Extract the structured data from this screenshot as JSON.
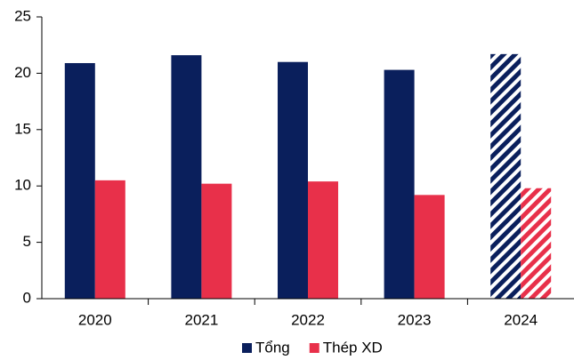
{
  "chart_data": {
    "type": "bar",
    "categories": [
      "2020",
      "2021",
      "2022",
      "2023",
      "2024"
    ],
    "series": [
      {
        "name": "Tổng",
        "color": "#0a1f5c",
        "values": [
          20.9,
          21.6,
          21.0,
          20.3,
          21.7
        ]
      },
      {
        "name": "Thép XD",
        "color": "#e8304a",
        "values": [
          10.5,
          10.2,
          10.4,
          9.2,
          9.8
        ]
      }
    ],
    "hatched": [
      false,
      false,
      false,
      false,
      true
    ],
    "ylim": [
      0,
      25
    ],
    "yticks": [
      0,
      5,
      10,
      15,
      20,
      25
    ],
    "grid": false
  }
}
